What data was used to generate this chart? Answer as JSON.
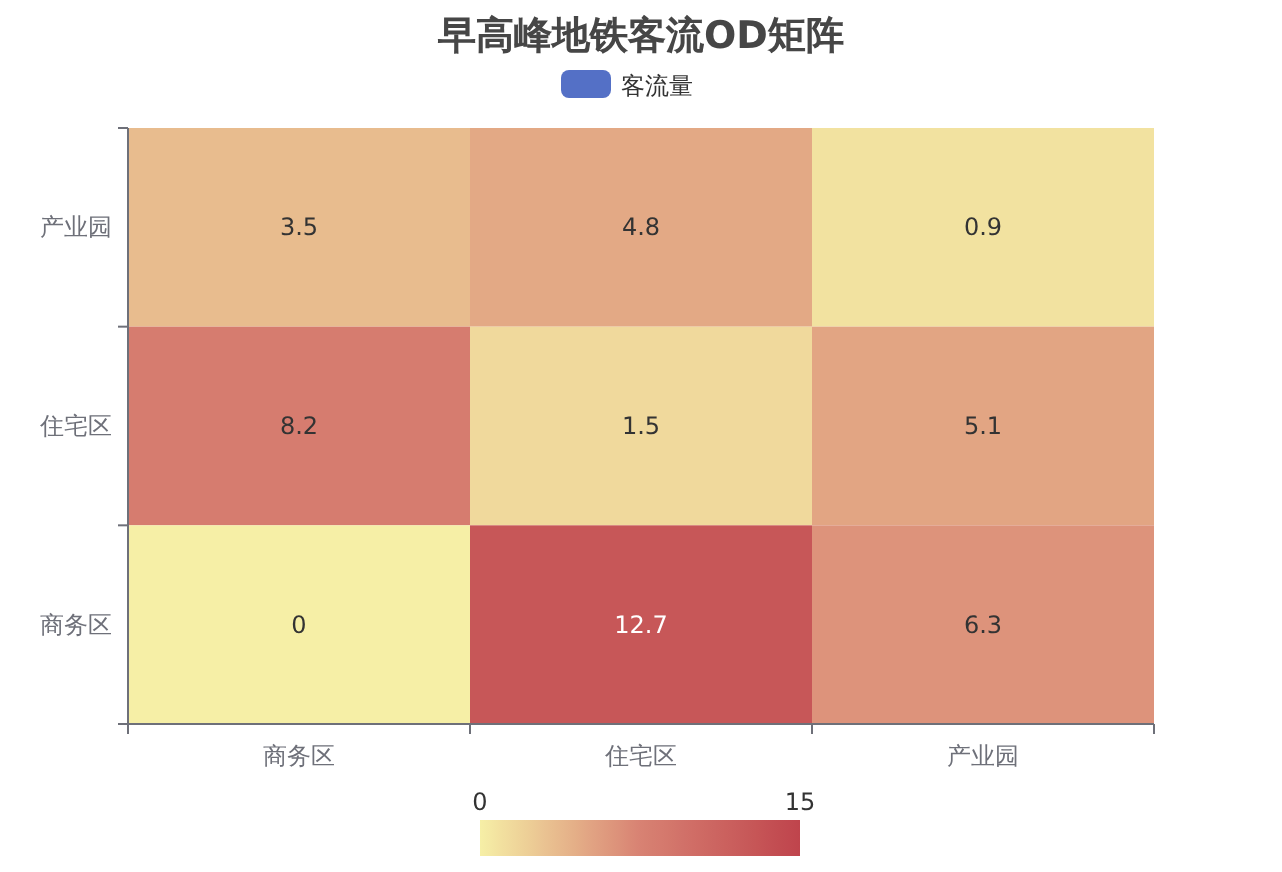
{
  "chart_data": {
    "type": "heatmap",
    "title": "早高峰地铁客流OD矩阵",
    "categories": [
      "商务区",
      "住宅区",
      "产业园"
    ],
    "y_categories": [
      "产业园",
      "住宅区",
      "商务区"
    ],
    "cells": [
      [
        3.5,
        4.8,
        0.9
      ],
      [
        8.2,
        1.5,
        5.1
      ],
      [
        0,
        12.7,
        6.3
      ]
    ],
    "clabel": "客流量",
    "data_labels": true,
    "clim": [
      0,
      15
    ],
    "cticks": [
      0,
      15
    ]
  }
}
